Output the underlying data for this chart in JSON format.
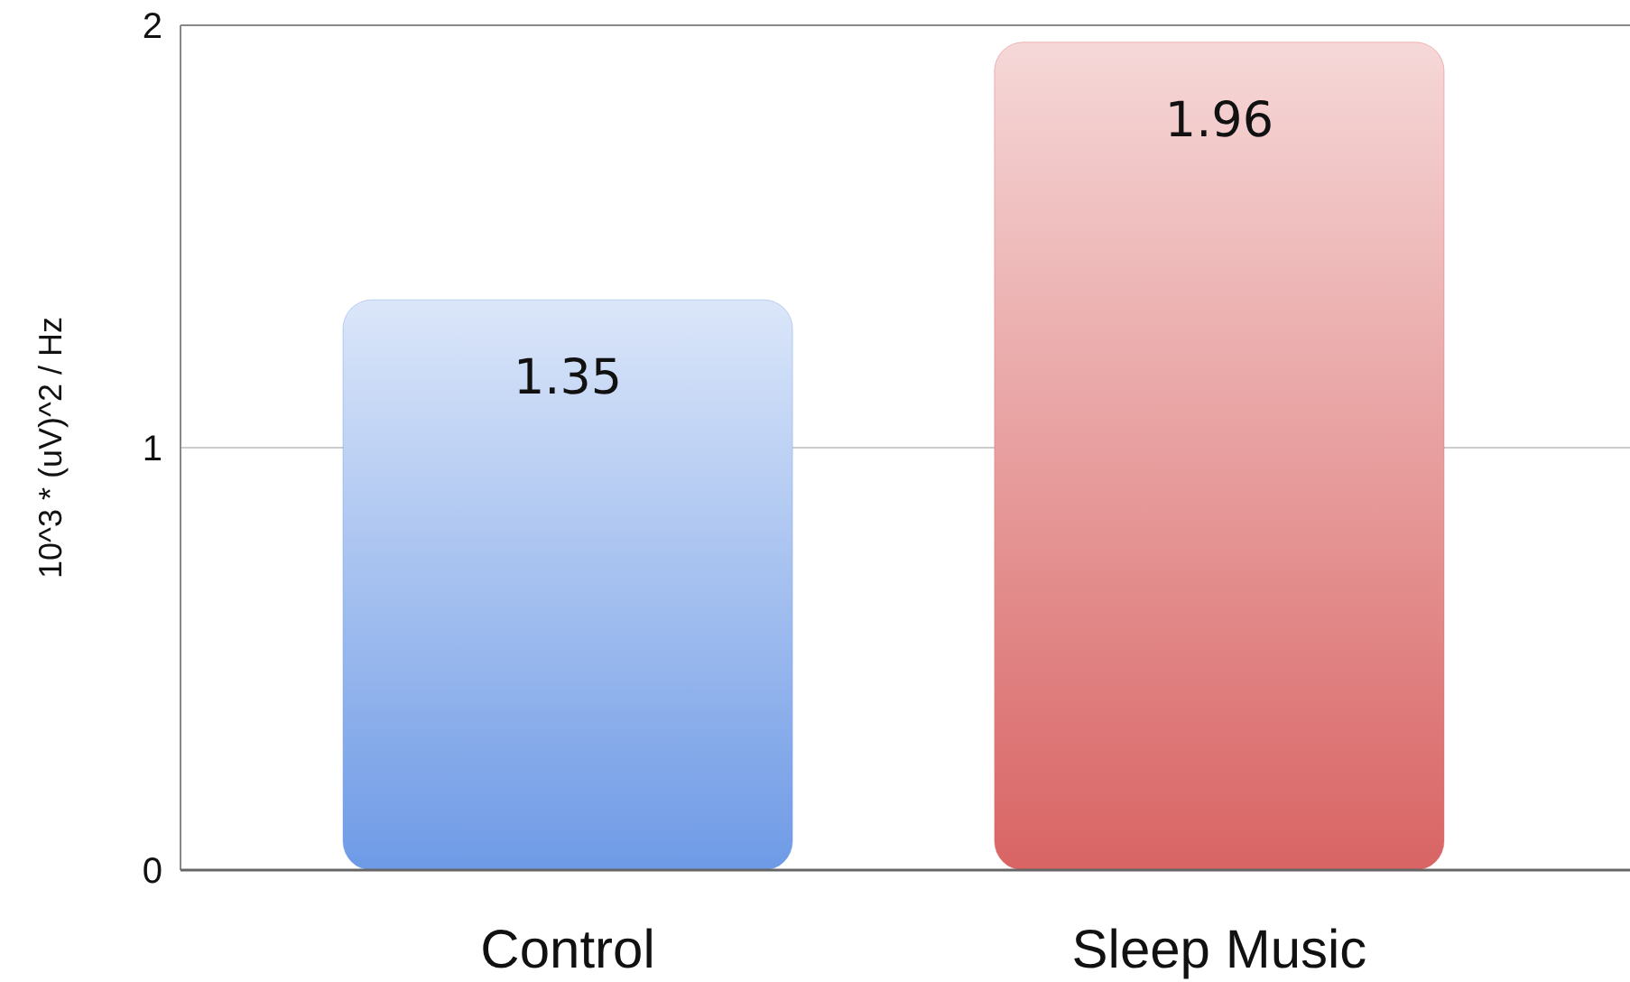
{
  "chart_data": {
    "type": "bar",
    "ylabel": "10^3 * (uV)^2 / Hz",
    "categories": [
      "Control",
      "Sleep Music"
    ],
    "values": [
      1.35,
      1.96
    ],
    "colors": [
      "#6e9ae6",
      "#d96464"
    ],
    "ylim": [
      0,
      2
    ],
    "yticks": [
      0,
      1,
      2
    ],
    "grid": "y",
    "data_labels": true
  }
}
